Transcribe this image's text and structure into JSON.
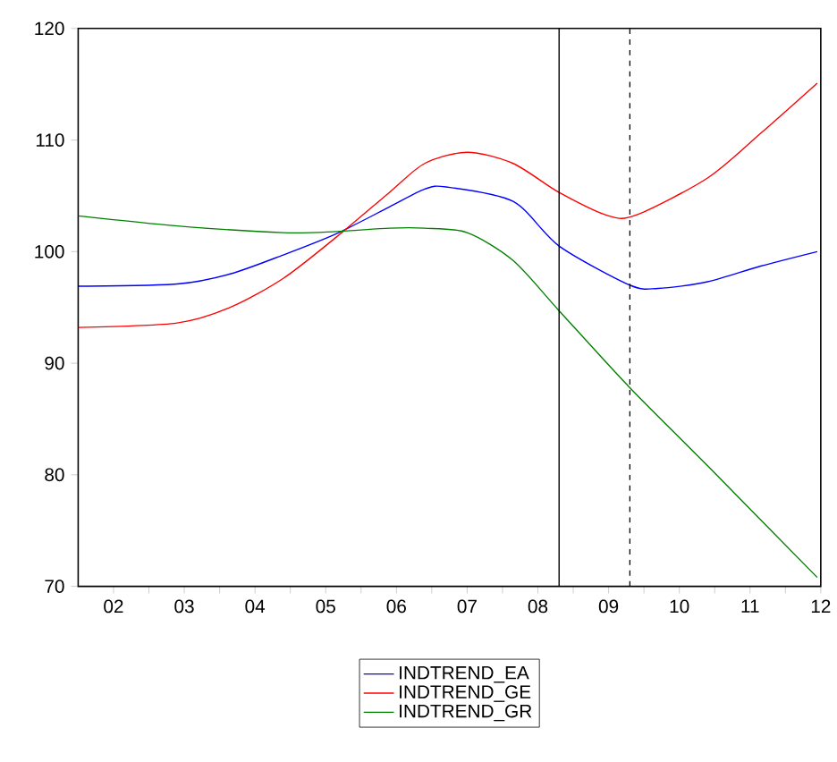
{
  "chart_data": {
    "type": "line",
    "xlim": [
      1.5,
      12
    ],
    "ylim": [
      70,
      120
    ],
    "xticks": [
      {
        "value": 2,
        "label": "02"
      },
      {
        "value": 3,
        "label": "03"
      },
      {
        "value": 4,
        "label": "04"
      },
      {
        "value": 5,
        "label": "05"
      },
      {
        "value": 6,
        "label": "06"
      },
      {
        "value": 7,
        "label": "07"
      },
      {
        "value": 8,
        "label": "08"
      },
      {
        "value": 9,
        "label": "09"
      },
      {
        "value": 10,
        "label": "10"
      },
      {
        "value": 11,
        "label": "11"
      },
      {
        "value": 12,
        "label": "12"
      },
      {
        "value": 2.5,
        "label": null
      },
      {
        "value": 3.5,
        "label": null
      },
      {
        "value": 4.5,
        "label": null
      },
      {
        "value": 5.5,
        "label": null
      },
      {
        "value": 6.5,
        "label": null
      },
      {
        "value": 7.5,
        "label": null
      },
      {
        "value": 8.5,
        "label": null
      },
      {
        "value": 9.5,
        "label": null
      },
      {
        "value": 10.5,
        "label": null
      },
      {
        "value": 11.5,
        "label": null
      }
    ],
    "yticks": [
      70,
      80,
      90,
      100,
      110,
      120
    ],
    "grid": false,
    "legend": "bottom",
    "marker": "none",
    "line_style": "solid",
    "series": [
      {
        "name": "INDTREND_EA",
        "color": "#0000ff",
        "x": [
          1.5,
          2.9,
          3.65,
          4.4,
          5.15,
          5.9,
          6.4,
          6.7,
          7.65,
          8.3,
          9.3,
          9.7,
          10.4,
          11.15,
          11.95
        ],
        "values": [
          96.9,
          97.1,
          98.0,
          99.7,
          101.6,
          104.0,
          105.6,
          105.8,
          104.5,
          100.5,
          97.0,
          96.7,
          97.3,
          98.7,
          100.0
        ]
      },
      {
        "name": "INDTREND_GE",
        "color": "#ff0000",
        "x": [
          1.5,
          2.9,
          3.65,
          4.4,
          5.15,
          5.9,
          6.4,
          7.0,
          7.65,
          8.3,
          9.0,
          9.4,
          10.4,
          11.15,
          11.95
        ],
        "values": [
          93.2,
          93.6,
          95.0,
          97.6,
          101.3,
          105.3,
          107.9,
          108.9,
          107.9,
          105.3,
          103.2,
          103.3,
          106.6,
          110.6,
          115.1
        ]
      },
      {
        "name": "INDTREND_GR",
        "color": "#008000",
        "x": [
          1.5,
          2.9,
          4.4,
          5.15,
          5.9,
          6.4,
          7.0,
          7.65,
          8.3,
          9.3,
          10.4,
          11.95
        ],
        "values": [
          103.2,
          102.3,
          101.7,
          101.8,
          102.1,
          102.1,
          101.7,
          99.2,
          94.7,
          87.8,
          80.8,
          70.8
        ]
      }
    ],
    "ref_lines": [
      {
        "axis": "x",
        "value": 8.3,
        "color": "#000000",
        "line_style": "solid"
      },
      {
        "axis": "x",
        "value": 9.3,
        "color": "#000000",
        "line_style": "dashed"
      }
    ]
  }
}
